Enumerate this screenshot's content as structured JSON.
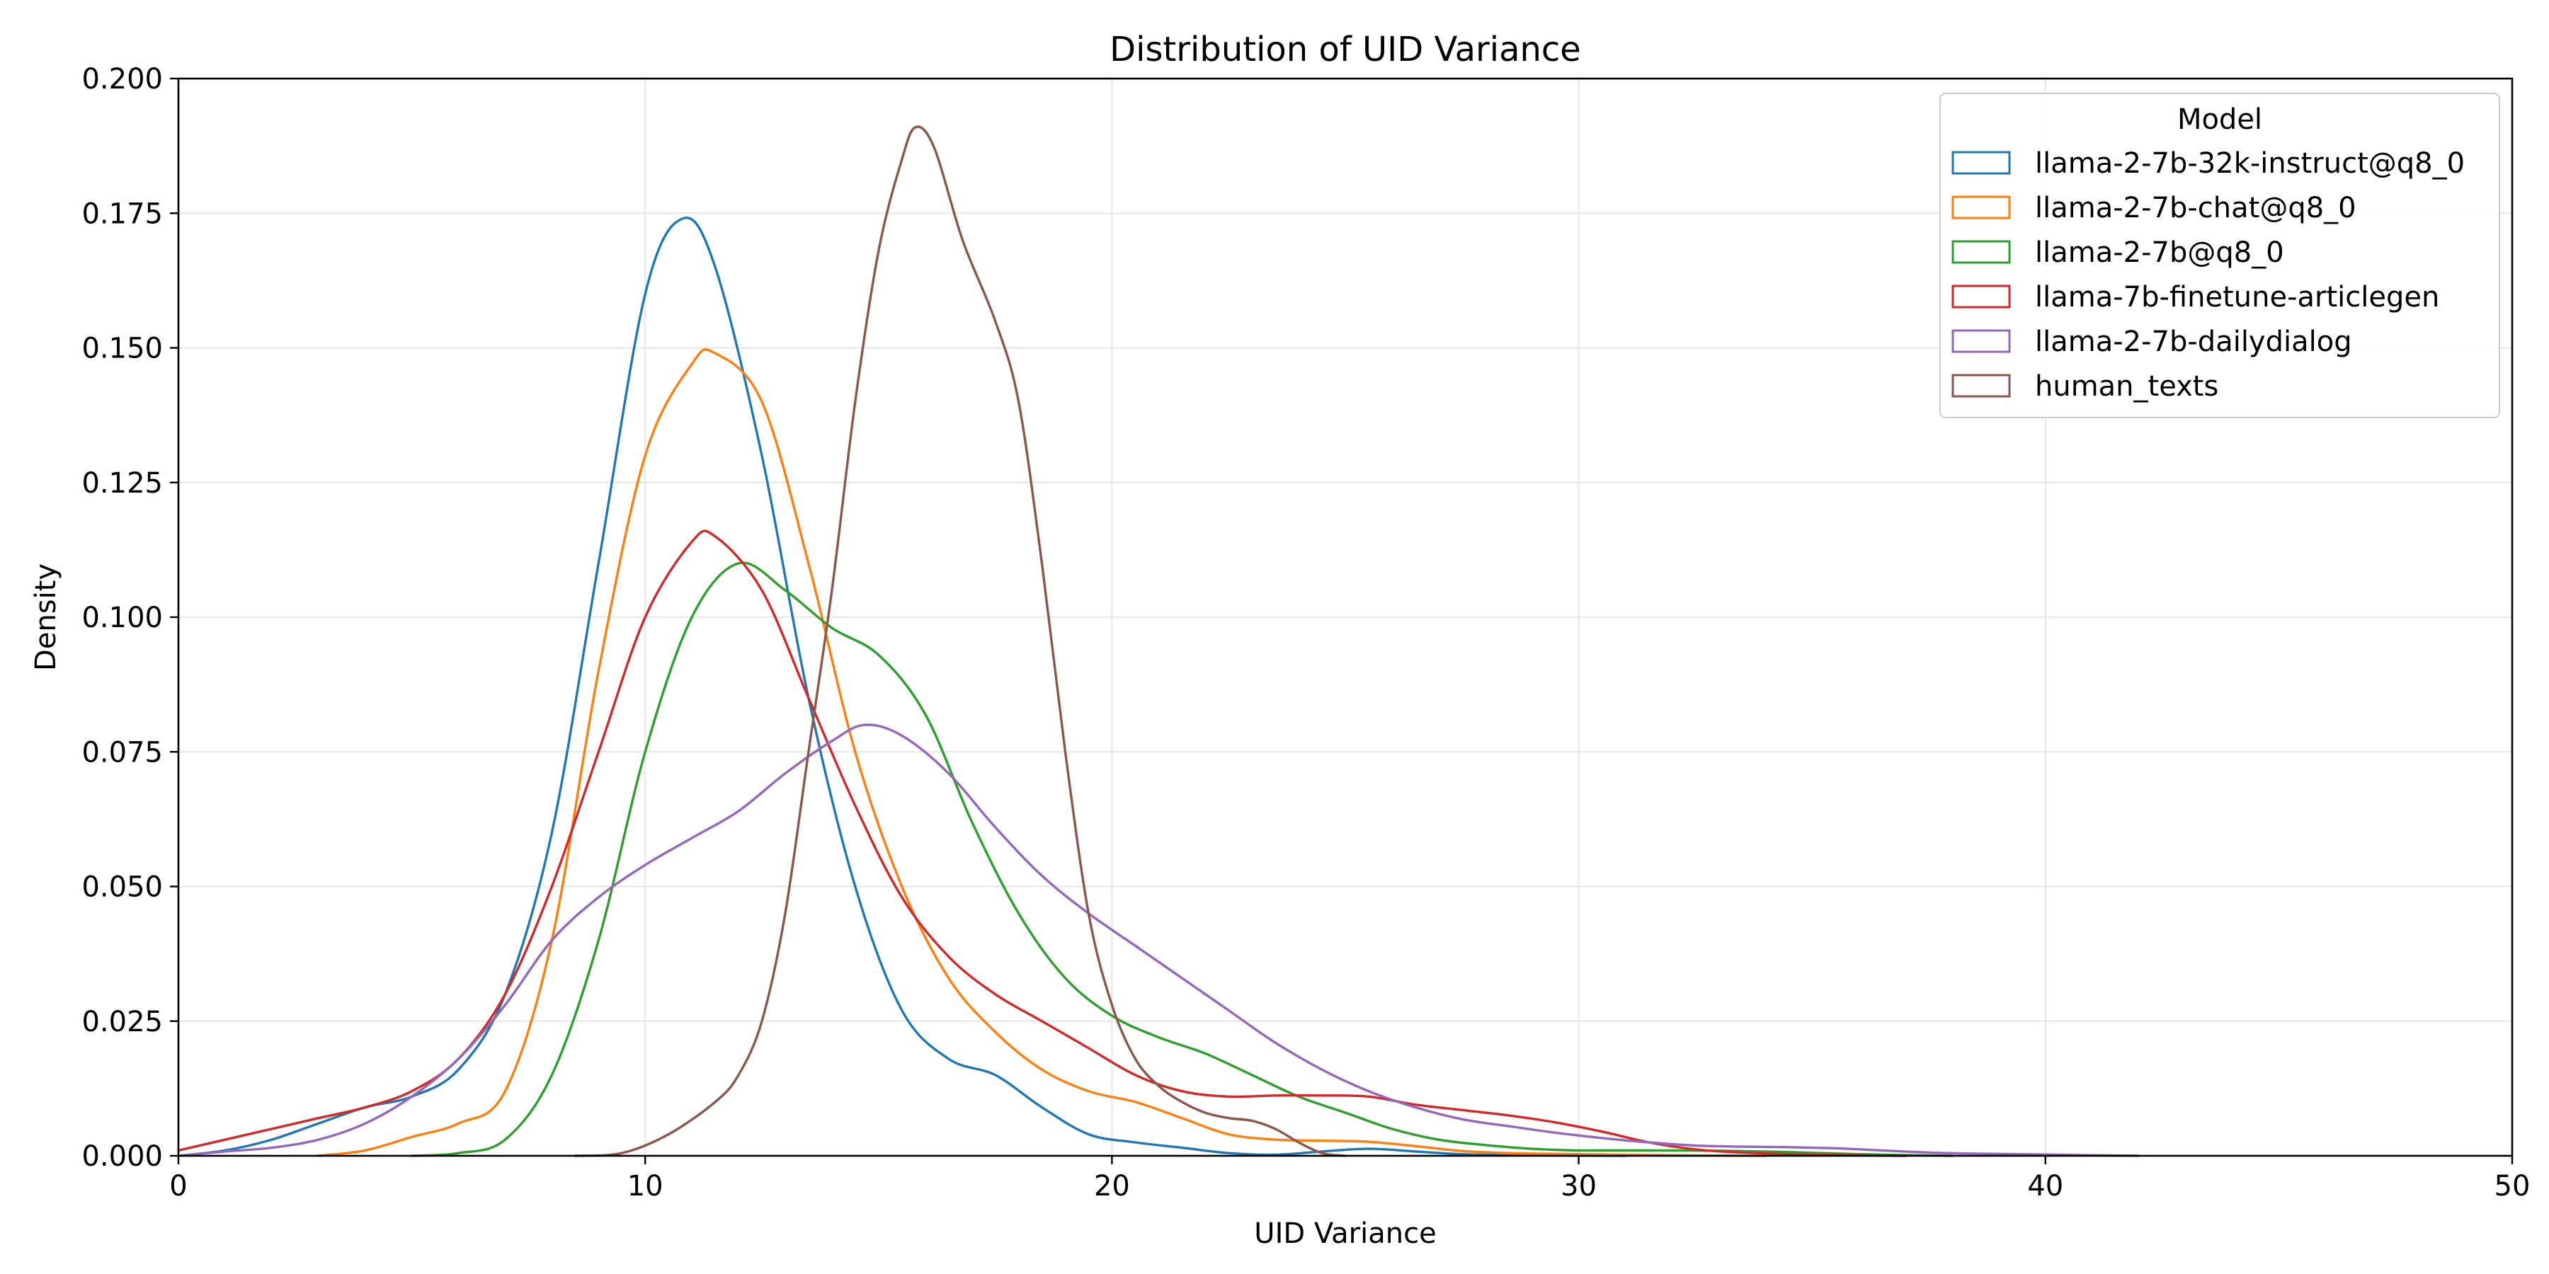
{
  "chart_data": {
    "type": "line",
    "title": "Distribution of UID Variance",
    "xlabel": "UID Variance",
    "ylabel": "Density",
    "xlim": [
      0,
      50
    ],
    "ylim": [
      0,
      0.2
    ],
    "xticks": [
      0,
      10,
      20,
      30,
      40,
      50
    ],
    "xtick_labels": [
      "0",
      "10",
      "20",
      "30",
      "40",
      "50"
    ],
    "yticks": [
      0,
      0.025,
      0.05,
      0.075,
      0.1,
      0.125,
      0.15,
      0.175,
      0.2
    ],
    "ytick_labels": [
      "0.000",
      "0.025",
      "0.050",
      "0.075",
      "0.100",
      "0.125",
      "0.150",
      "0.175",
      "0.200"
    ],
    "grid": true,
    "legend": {
      "title": "Model",
      "placement": "top-right"
    },
    "series": [
      {
        "name": "llama-2-7b-32k-instruct@q8_0",
        "color": "#1f77b4",
        "points": [
          [
            0,
            0.0
          ],
          [
            1,
            0.001
          ],
          [
            2,
            0.003
          ],
          [
            3,
            0.006
          ],
          [
            4,
            0.009
          ],
          [
            5,
            0.011
          ],
          [
            6,
            0.016
          ],
          [
            7,
            0.03
          ],
          [
            8,
            0.06
          ],
          [
            9,
            0.11
          ],
          [
            10,
            0.16
          ],
          [
            10.8,
            0.174
          ],
          [
            11.5,
            0.165
          ],
          [
            12.5,
            0.13
          ],
          [
            13.5,
            0.085
          ],
          [
            14.5,
            0.05
          ],
          [
            15.5,
            0.027
          ],
          [
            16.5,
            0.018
          ],
          [
            17.5,
            0.015
          ],
          [
            18.5,
            0.009
          ],
          [
            19.5,
            0.004
          ],
          [
            20.5,
            0.0025
          ],
          [
            21.5,
            0.0015
          ],
          [
            22.5,
            0.0005
          ],
          [
            23.5,
            0.0002
          ],
          [
            24.5,
            0.0008
          ],
          [
            25.5,
            0.0013
          ],
          [
            26.5,
            0.0008
          ],
          [
            27.5,
            0.0003
          ],
          [
            29,
            0.0001
          ],
          [
            31,
            0.0
          ]
        ]
      },
      {
        "name": "llama-2-7b-chat@q8_0",
        "color": "#ff7f0e",
        "points": [
          [
            3,
            0.0
          ],
          [
            4,
            0.001
          ],
          [
            5,
            0.0035
          ],
          [
            6,
            0.006
          ],
          [
            7,
            0.012
          ],
          [
            8,
            0.04
          ],
          [
            9,
            0.09
          ],
          [
            10,
            0.13
          ],
          [
            11,
            0.147
          ],
          [
            11.5,
            0.149
          ],
          [
            12.5,
            0.14
          ],
          [
            13.5,
            0.11
          ],
          [
            14.5,
            0.075
          ],
          [
            15.5,
            0.05
          ],
          [
            16.5,
            0.033
          ],
          [
            17.5,
            0.023
          ],
          [
            18.5,
            0.016
          ],
          [
            19.5,
            0.012
          ],
          [
            20.5,
            0.01
          ],
          [
            21.5,
            0.007
          ],
          [
            22.5,
            0.004
          ],
          [
            23.5,
            0.003
          ],
          [
            24.5,
            0.0028
          ],
          [
            25.5,
            0.0026
          ],
          [
            26.5,
            0.0018
          ],
          [
            27.5,
            0.0009
          ],
          [
            28.5,
            0.0005
          ],
          [
            30,
            0.0003
          ],
          [
            32,
            0.0001
          ],
          [
            34,
            0.0
          ]
        ]
      },
      {
        "name": "llama-2-7b@q8_0",
        "color": "#2ca02c",
        "points": [
          [
            5,
            0.0
          ],
          [
            6,
            0.0005
          ],
          [
            7,
            0.003
          ],
          [
            8,
            0.015
          ],
          [
            9,
            0.04
          ],
          [
            10,
            0.075
          ],
          [
            11,
            0.1
          ],
          [
            12,
            0.11
          ],
          [
            13,
            0.105
          ],
          [
            14,
            0.098
          ],
          [
            15,
            0.093
          ],
          [
            16,
            0.082
          ],
          [
            17,
            0.062
          ],
          [
            18,
            0.045
          ],
          [
            19,
            0.033
          ],
          [
            20,
            0.026
          ],
          [
            21,
            0.022
          ],
          [
            22,
            0.019
          ],
          [
            23,
            0.015
          ],
          [
            24,
            0.011
          ],
          [
            25,
            0.008
          ],
          [
            26,
            0.005
          ],
          [
            27,
            0.003
          ],
          [
            28,
            0.002
          ],
          [
            29,
            0.0013
          ],
          [
            30,
            0.001
          ],
          [
            32,
            0.001
          ],
          [
            34,
            0.0008
          ],
          [
            36,
            0.0003
          ],
          [
            38,
            0.0
          ]
        ]
      },
      {
        "name": "llama-7b-finetune-articlegen",
        "color": "#d62728",
        "points": [
          [
            0,
            0.001
          ],
          [
            1,
            0.003
          ],
          [
            2,
            0.005
          ],
          [
            3,
            0.007
          ],
          [
            4,
            0.009
          ],
          [
            5,
            0.012
          ],
          [
            6,
            0.018
          ],
          [
            7,
            0.03
          ],
          [
            8,
            0.05
          ],
          [
            9,
            0.075
          ],
          [
            10,
            0.1
          ],
          [
            11,
            0.114
          ],
          [
            11.5,
            0.115
          ],
          [
            12.5,
            0.105
          ],
          [
            13.5,
            0.085
          ],
          [
            14.5,
            0.065
          ],
          [
            15.5,
            0.048
          ],
          [
            16.5,
            0.037
          ],
          [
            17.5,
            0.03
          ],
          [
            18.5,
            0.025
          ],
          [
            19.5,
            0.02
          ],
          [
            20.5,
            0.015
          ],
          [
            21.5,
            0.012
          ],
          [
            22.5,
            0.011
          ],
          [
            23.5,
            0.0112
          ],
          [
            24.5,
            0.0112
          ],
          [
            25.5,
            0.011
          ],
          [
            26.5,
            0.0095
          ],
          [
            27.5,
            0.0085
          ],
          [
            28.5,
            0.0075
          ],
          [
            29.5,
            0.0062
          ],
          [
            30.5,
            0.0045
          ],
          [
            31.5,
            0.0025
          ],
          [
            32.5,
            0.0012
          ],
          [
            33.5,
            0.0006
          ],
          [
            35,
            0.0002
          ],
          [
            37,
            0.0
          ]
        ]
      },
      {
        "name": "llama-2-7b-dailydialog",
        "color": "#9467bd",
        "points": [
          [
            0,
            0.0
          ],
          [
            1,
            0.0008
          ],
          [
            2,
            0.0015
          ],
          [
            3,
            0.003
          ],
          [
            4,
            0.006
          ],
          [
            5,
            0.011
          ],
          [
            6,
            0.018
          ],
          [
            7,
            0.028
          ],
          [
            8,
            0.04
          ],
          [
            9,
            0.048
          ],
          [
            10,
            0.054
          ],
          [
            11,
            0.059
          ],
          [
            12,
            0.064
          ],
          [
            13,
            0.071
          ],
          [
            14,
            0.077
          ],
          [
            14.7,
            0.08
          ],
          [
            15.5,
            0.078
          ],
          [
            16.5,
            0.071
          ],
          [
            17.5,
            0.061
          ],
          [
            18.5,
            0.052
          ],
          [
            19.5,
            0.045
          ],
          [
            20.5,
            0.039
          ],
          [
            21.5,
            0.033
          ],
          [
            22.5,
            0.027
          ],
          [
            23.5,
            0.021
          ],
          [
            24.5,
            0.016
          ],
          [
            25.5,
            0.012
          ],
          [
            26.5,
            0.009
          ],
          [
            27.5,
            0.0068
          ],
          [
            28.5,
            0.0055
          ],
          [
            29.5,
            0.0043
          ],
          [
            30.5,
            0.0033
          ],
          [
            31.5,
            0.0025
          ],
          [
            32.5,
            0.0019
          ],
          [
            33.5,
            0.0017
          ],
          [
            34.5,
            0.0016
          ],
          [
            35.5,
            0.0014
          ],
          [
            36.5,
            0.001
          ],
          [
            37.5,
            0.0006
          ],
          [
            38.5,
            0.0004
          ],
          [
            39.5,
            0.0003
          ],
          [
            41,
            0.0001
          ],
          [
            42,
            0.0
          ]
        ]
      },
      {
        "name": "human_texts",
        "color": "#8c564b",
        "points": [
          [
            8.5,
            0.0
          ],
          [
            9.5,
            0.0005
          ],
          [
            10.5,
            0.004
          ],
          [
            11.5,
            0.01
          ],
          [
            12,
            0.015
          ],
          [
            12.5,
            0.025
          ],
          [
            13,
            0.045
          ],
          [
            13.5,
            0.075
          ],
          [
            14,
            0.105
          ],
          [
            14.5,
            0.14
          ],
          [
            15,
            0.168
          ],
          [
            15.5,
            0.185
          ],
          [
            15.8,
            0.191
          ],
          [
            16.2,
            0.187
          ],
          [
            16.8,
            0.17
          ],
          [
            17.5,
            0.155
          ],
          [
            18,
            0.14
          ],
          [
            18.5,
            0.11
          ],
          [
            19,
            0.075
          ],
          [
            19.5,
            0.045
          ],
          [
            20,
            0.028
          ],
          [
            20.5,
            0.018
          ],
          [
            21,
            0.013
          ],
          [
            21.5,
            0.01
          ],
          [
            22,
            0.008
          ],
          [
            22.5,
            0.007
          ],
          [
            23,
            0.0065
          ],
          [
            23.5,
            0.005
          ],
          [
            24,
            0.0025
          ],
          [
            24.5,
            0.0005
          ],
          [
            25,
            0.0
          ]
        ]
      }
    ]
  }
}
